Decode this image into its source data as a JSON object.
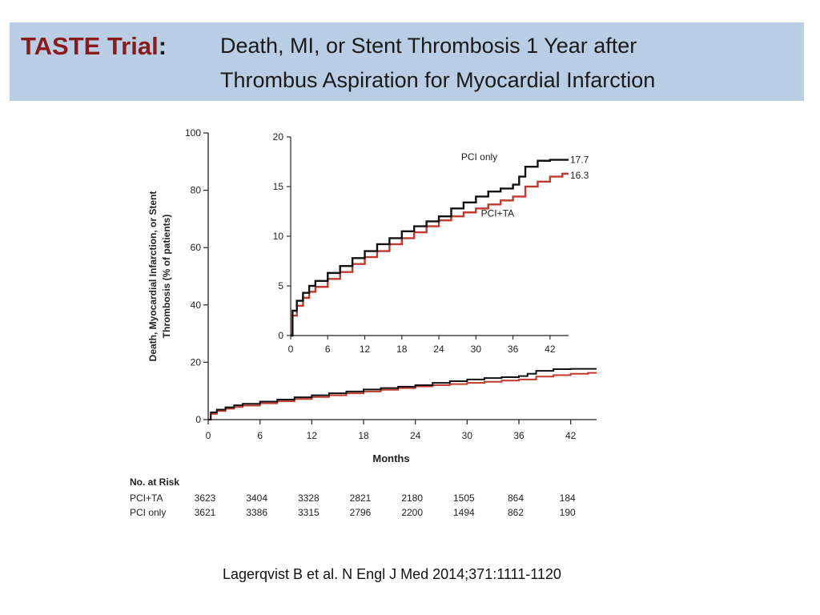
{
  "slide": {
    "title_lead": "TASTE Trial",
    "title_colon": ":",
    "title_line1": "Death, MI, or Stent Thrombosis 1 Year after",
    "title_line2": "Thrombus Aspiration  for Myocardial Infarction",
    "citation": "Lagerqvist B et al. N Engl J Med 2014;371:1111-1120",
    "colors": {
      "banner": "#b9cde5",
      "title_accent": "#8b1a1a"
    }
  },
  "chart_data": {
    "type": "line",
    "xlabel": "Months",
    "ylabel_line1": "Death, Myocardial Infarction, or Stent",
    "ylabel_line2": "Thrombosis (% of patients)",
    "xlim": [
      0,
      45
    ],
    "ylim": [
      0,
      100
    ],
    "xticks": [
      0,
      6,
      12,
      18,
      24,
      30,
      36,
      42
    ],
    "yticks": [
      0,
      20,
      40,
      60,
      80,
      100
    ],
    "inset": {
      "xlim": [
        0,
        45
      ],
      "ylim": [
        0,
        20
      ],
      "xticks": [
        0,
        6,
        12,
        18,
        24,
        30,
        36,
        42
      ],
      "yticks": [
        0,
        5,
        10,
        15,
        20
      ]
    },
    "series": [
      {
        "name": "PCI only",
        "color": "#111111",
        "end_label": "17.7",
        "x": [
          0,
          0.3,
          1,
          2,
          3,
          4,
          6,
          8,
          10,
          12,
          14,
          16,
          18,
          20,
          22,
          24,
          26,
          28,
          30,
          32,
          34,
          36,
          37,
          38,
          40,
          42,
          44,
          45
        ],
        "y": [
          0,
          2.5,
          3.5,
          4.3,
          5.0,
          5.5,
          6.3,
          7.0,
          7.8,
          8.5,
          9.2,
          9.8,
          10.5,
          11.0,
          11.5,
          12.0,
          12.8,
          13.4,
          14.0,
          14.5,
          14.8,
          15.2,
          16.0,
          17.0,
          17.6,
          17.7,
          17.7,
          17.7
        ]
      },
      {
        "name": "PCI+TA",
        "color": "#c0392b",
        "end_label": "16.3",
        "x": [
          0,
          0.3,
          1,
          2,
          3,
          4,
          6,
          8,
          10,
          12,
          14,
          16,
          18,
          20,
          22,
          24,
          26,
          28,
          30,
          32,
          34,
          36,
          38,
          40,
          42,
          44,
          45
        ],
        "y": [
          0,
          2.0,
          3.0,
          3.8,
          4.4,
          4.9,
          5.7,
          6.4,
          7.2,
          7.9,
          8.5,
          9.2,
          9.8,
          10.4,
          11.0,
          11.6,
          12.0,
          12.4,
          12.8,
          13.2,
          13.6,
          14.0,
          15.0,
          15.5,
          16.0,
          16.3,
          16.3
        ]
      }
    ],
    "at_risk": {
      "heading": "No. at Risk",
      "rows": [
        {
          "label": "PCI+TA",
          "values": [
            "3623",
            "3404",
            "3328",
            "2821",
            "2180",
            "1505",
            "864",
            "184"
          ]
        },
        {
          "label": "PCI only",
          "values": [
            "3621",
            "3386",
            "3315",
            "2796",
            "2200",
            "1494",
            "862",
            "190"
          ]
        }
      ]
    }
  }
}
